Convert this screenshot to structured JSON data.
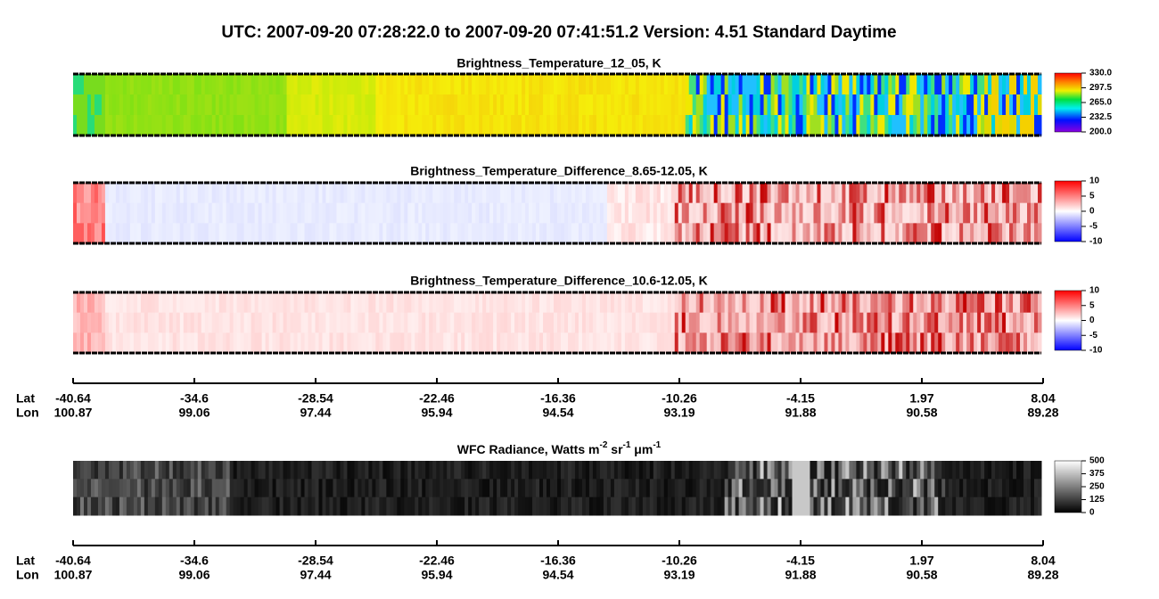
{
  "title": "UTC:  2007-09-20   07:28:22.0  to  2007-09-20   07:41:51.2    Version: 4.51  Standard Daytime",
  "panels": [
    {
      "title": "Brightness_Temperature_12_05, K",
      "scale": "rainbow",
      "range": [
        200,
        330
      ],
      "ticks": [
        {
          "value": 330,
          "label": "330.0"
        },
        297.5,
        {
          "value": 265,
          "label": "265.0"
        },
        232.5,
        {
          "value": 200,
          "label": "200.0"
        }
      ]
    },
    {
      "title": "Brightness_Temperature_Difference_8.65-12.05, K",
      "scale": "diverging",
      "range": [
        -10,
        10
      ],
      "ticks": [
        10,
        5,
        0,
        -5,
        -10
      ]
    },
    {
      "title": "Brightness_Temperature_Difference_10.6-12.05, K",
      "scale": "diverging",
      "range": [
        -10,
        10
      ],
      "ticks": [
        10,
        5,
        0,
        -5,
        -10
      ]
    },
    {
      "title_parts": [
        "WFC Radiance, Watts m",
        "-2",
        " sr",
        "-1",
        " μm",
        "-1"
      ],
      "scale": "gray",
      "range": [
        0,
        500
      ],
      "ticks": [
        500,
        375,
        250,
        125,
        0
      ]
    }
  ],
  "axes": [
    {
      "lat_label": "Lat",
      "lon_label": "Lon",
      "lat": [
        -40.64,
        -34.6,
        -28.54,
        -22.46,
        -16.36,
        -10.26,
        -4.15,
        1.97,
        8.04
      ],
      "lon": [
        100.87,
        99.06,
        97.44,
        95.94,
        94.54,
        93.19,
        91.88,
        90.58,
        89.28
      ]
    },
    {
      "lat_label": "Lat",
      "lon_label": "Lon",
      "lat": [
        -40.64,
        -34.6,
        -28.54,
        -22.46,
        -16.36,
        -10.26,
        -4.15,
        1.97,
        8.04
      ],
      "lon": [
        100.87,
        99.06,
        97.44,
        95.94,
        94.54,
        93.19,
        91.88,
        90.58,
        89.28
      ]
    }
  ]
}
